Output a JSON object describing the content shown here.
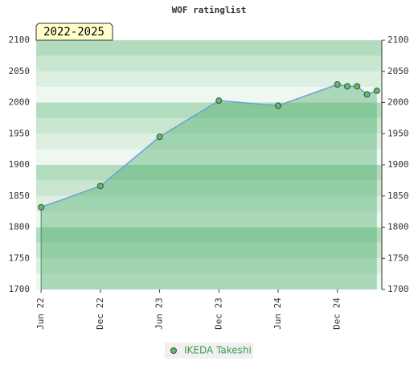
{
  "chart_data": {
    "type": "line",
    "title": "WOF ratinglist",
    "annotation": "2022-2025",
    "x": [
      "2022-06",
      "2022-12",
      "2023-06",
      "2023-12",
      "2024-06",
      "2024-12",
      "2025-01",
      "2025-02",
      "2025-03",
      "2025-04"
    ],
    "series": [
      {
        "name": "IKEDA Takeshi",
        "color": "#66b573",
        "line_color": "#6a9fd8",
        "values": [
          1832,
          1866,
          1945,
          2003,
          1995,
          2029,
          2026,
          2026,
          2013,
          2019
        ]
      }
    ],
    "xlim": [
      "2022-06",
      "2025-04"
    ],
    "xticks": [
      {
        "value": "2022-06",
        "label": "Jun 22"
      },
      {
        "value": "2022-12",
        "label": "Dec 22"
      },
      {
        "value": "2023-06",
        "label": "Jun 23"
      },
      {
        "value": "2023-12",
        "label": "Dec 23"
      },
      {
        "value": "2024-06",
        "label": "Jun 24"
      },
      {
        "value": "2024-12",
        "label": "Dec 24"
      }
    ],
    "ylim": [
      1700,
      2100
    ],
    "yticks": [
      1700,
      1750,
      1800,
      1850,
      1900,
      1950,
      2000,
      2050,
      2100
    ]
  }
}
